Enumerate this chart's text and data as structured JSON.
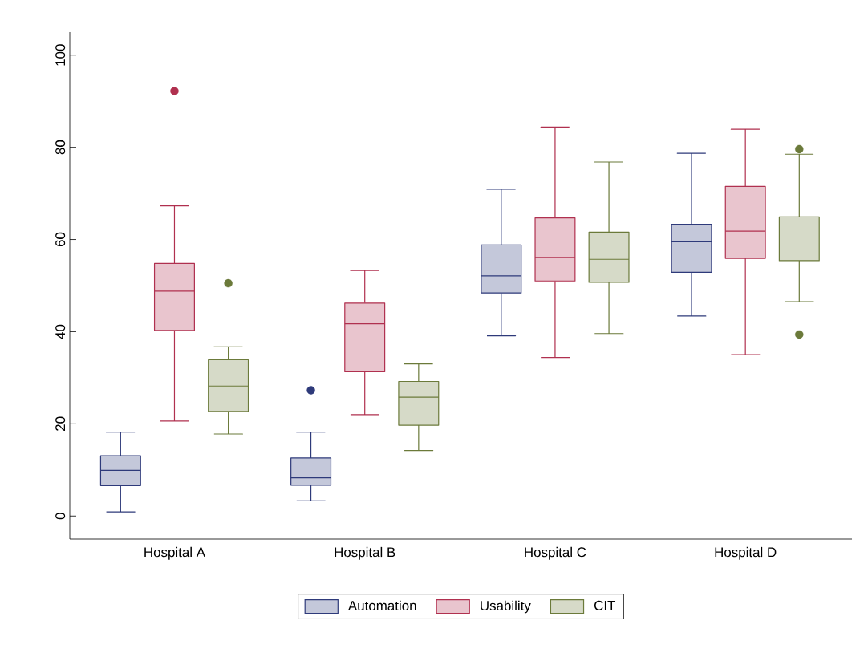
{
  "chart_data": {
    "type": "box",
    "categories": [
      "Hospital A",
      "Hospital B",
      "Hospital C",
      "Hospital D"
    ],
    "ylim": [
      -5,
      105
    ],
    "yticks": [
      0,
      20,
      40,
      60,
      80,
      100
    ],
    "legend": "bottom",
    "series": [
      {
        "name": "Automation",
        "color": "#2e3a7a",
        "boxes": [
          {
            "low": 0.9,
            "q1": 6.6,
            "median": 9.9,
            "q3": 13.1,
            "high": 18.2
          },
          {
            "low": 3.3,
            "q1": 6.7,
            "median": 8.3,
            "q3": 12.6,
            "high": 18.2,
            "outliers": [
              27.3
            ]
          },
          {
            "low": 39.1,
            "q1": 48.4,
            "median": 52.1,
            "q3": 58.8,
            "high": 70.9
          },
          {
            "low": 43.4,
            "q1": 52.9,
            "median": 59.5,
            "q3": 63.3,
            "high": 78.7
          }
        ]
      },
      {
        "name": "Usability",
        "color": "#b0304f",
        "boxes": [
          {
            "low": 20.6,
            "q1": 40.3,
            "median": 48.8,
            "q3": 54.8,
            "high": 67.3,
            "outliers": [
              92.2
            ]
          },
          {
            "low": 22.0,
            "q1": 31.3,
            "median": 41.7,
            "q3": 46.2,
            "high": 53.3
          },
          {
            "low": 34.4,
            "q1": 51.0,
            "median": 56.1,
            "q3": 64.7,
            "high": 84.4
          },
          {
            "low": 35.0,
            "q1": 55.9,
            "median": 61.8,
            "q3": 71.5,
            "high": 83.9
          }
        ]
      },
      {
        "name": "CIT",
        "color": "#6b7a3a",
        "boxes": [
          {
            "low": 17.8,
            "q1": 22.7,
            "median": 28.2,
            "q3": 33.9,
            "high": 36.7,
            "outliers": [
              50.5
            ]
          },
          {
            "low": 14.2,
            "q1": 19.7,
            "median": 25.8,
            "q3": 29.2,
            "high": 33.0
          },
          {
            "low": 39.6,
            "q1": 50.7,
            "median": 55.7,
            "q3": 61.6,
            "high": 76.8
          },
          {
            "low": 46.5,
            "q1": 55.4,
            "median": 61.4,
            "q3": 64.9,
            "high": 78.5,
            "outliers": [
              79.6,
              39.4
            ]
          }
        ]
      }
    ]
  }
}
